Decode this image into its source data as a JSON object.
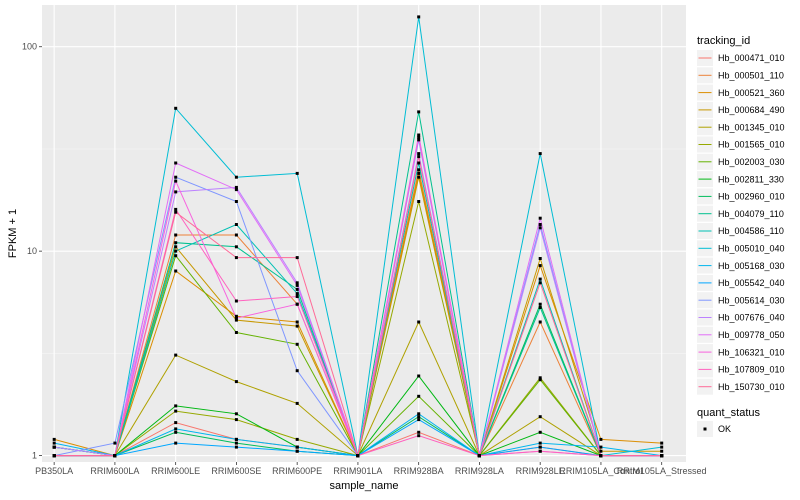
{
  "chart_data": {
    "type": "line",
    "xlabel": "sample_name",
    "ylabel": "FPKM + 1",
    "y_scale": "log10",
    "ylim": [
      0.93,
      160
    ],
    "y_ticks": [
      1,
      10,
      100
    ],
    "y_tick_labels": [
      "1",
      "10",
      "100"
    ],
    "grid": true,
    "legend_position": "right",
    "categories": [
      "PB350LA",
      "RRIM600LA",
      "RRIM600LE",
      "RRIM600SE",
      "RRIM600PE",
      "RRIM901LA",
      "RRIM928BA",
      "RRIM928LA",
      "RRIM928LE",
      "RRIM105LA_Control",
      "RRIM105LA_Stressed"
    ],
    "series": [
      {
        "name": "Hb_000471_010",
        "color": "#F8766D",
        "values": [
          1.0,
          1.0,
          1.45,
          1.2,
          1.1,
          1.0,
          1.3,
          1.0,
          1.1,
          1.0,
          1.0
        ]
      },
      {
        "name": "Hb_000501_110",
        "color": "#EC8239",
        "values": [
          1.0,
          1.0,
          12.0,
          12.0,
          5.5,
          1.0,
          25.0,
          1.0,
          4.5,
          1.0,
          1.0
        ]
      },
      {
        "name": "Hb_000521_360",
        "color": "#DB8E00",
        "values": [
          1.2,
          1.0,
          8.0,
          4.8,
          4.5,
          1.0,
          24.0,
          1.0,
          8.5,
          1.2,
          1.15
        ]
      },
      {
        "name": "Hb_000684_490",
        "color": "#C79800",
        "values": [
          1.1,
          1.0,
          10.5,
          4.6,
          4.3,
          1.0,
          23.0,
          1.0,
          9.2,
          1.05,
          1.05
        ]
      },
      {
        "name": "Hb_001345_010",
        "color": "#AFA100",
        "values": [
          1.0,
          1.0,
          3.1,
          2.3,
          1.8,
          1.0,
          4.5,
          1.0,
          1.55,
          1.0,
          1.0
        ]
      },
      {
        "name": "Hb_001565_010",
        "color": "#96A900",
        "values": [
          1.0,
          1.0,
          1.65,
          1.5,
          1.2,
          1.0,
          17.5,
          1.0,
          2.4,
          1.0,
          1.0
        ]
      },
      {
        "name": "Hb_002003_030",
        "color": "#64B200",
        "values": [
          1.1,
          1.0,
          9.5,
          4.0,
          3.5,
          1.0,
          1.95,
          1.0,
          2.35,
          1.0,
          1.0
        ]
      },
      {
        "name": "Hb_002811_330",
        "color": "#00B813",
        "values": [
          1.0,
          1.0,
          1.75,
          1.6,
          1.1,
          1.0,
          2.45,
          1.0,
          1.3,
          1.0,
          1.0
        ]
      },
      {
        "name": "Hb_002960_010",
        "color": "#00BD5C",
        "values": [
          1.0,
          1.0,
          1.3,
          1.15,
          1.05,
          1.0,
          1.55,
          1.0,
          5.5,
          1.0,
          1.0
        ]
      },
      {
        "name": "Hb_004079_110",
        "color": "#00C08E",
        "values": [
          1.0,
          1.0,
          11.0,
          10.5,
          6.5,
          1.0,
          48.0,
          1.0,
          5.3,
          1.0,
          1.0
        ]
      },
      {
        "name": "Hb_004586_110",
        "color": "#00C0B4",
        "values": [
          1.1,
          1.0,
          10.0,
          13.5,
          6.2,
          1.0,
          27.0,
          1.0,
          7.3,
          1.0,
          1.0
        ]
      },
      {
        "name": "Hb_005010_040",
        "color": "#00BDD4",
        "values": [
          1.1,
          1.0,
          50.0,
          23.0,
          24.0,
          1.0,
          140.0,
          1.0,
          30.0,
          1.0,
          1.1
        ]
      },
      {
        "name": "Hb_005168_030",
        "color": "#00B5EE",
        "values": [
          1.15,
          1.0,
          1.35,
          1.2,
          1.1,
          1.0,
          1.6,
          1.0,
          1.15,
          1.1,
          1.0
        ]
      },
      {
        "name": "Hb_005542_040",
        "color": "#00A7FF",
        "values": [
          1.0,
          1.0,
          1.15,
          1.1,
          1.05,
          1.0,
          1.5,
          1.0,
          1.1,
          1.0,
          1.0
        ]
      },
      {
        "name": "Hb_005614_030",
        "color": "#7F96FF",
        "values": [
          1.0,
          1.15,
          23.0,
          17.5,
          2.6,
          1.0,
          35.0,
          1.0,
          13.5,
          1.0,
          1.0
        ]
      },
      {
        "name": "Hb_007676_040",
        "color": "#BC81FF",
        "values": [
          1.1,
          1.0,
          19.5,
          20.5,
          7.0,
          1.0,
          30.0,
          1.0,
          13.0,
          1.0,
          1.0
        ]
      },
      {
        "name": "Hb_009778_050",
        "color": "#E26EF7",
        "values": [
          1.0,
          1.0,
          27.0,
          20.0,
          6.8,
          1.0,
          37.0,
          1.0,
          14.5,
          1.0,
          1.0
        ]
      },
      {
        "name": "Hb_106321_010",
        "color": "#F863DF",
        "values": [
          1.0,
          1.0,
          22.0,
          4.7,
          5.5,
          1.0,
          36.0,
          1.0,
          1.05,
          1.0,
          1.0
        ]
      },
      {
        "name": "Hb_107809_010",
        "color": "#FF62BF",
        "values": [
          1.0,
          1.0,
          16.0,
          5.7,
          6.0,
          1.0,
          1.25,
          1.0,
          1.05,
          1.0,
          1.0
        ]
      },
      {
        "name": "Hb_150730_010",
        "color": "#FF6A98",
        "values": [
          1.0,
          1.0,
          15.5,
          9.3,
          9.3,
          1.0,
          29.0,
          1.0,
          7.0,
          1.0,
          1.0
        ]
      }
    ],
    "legend": {
      "color_title": "tracking_id",
      "shape_title": "quant_status",
      "shape_entries": [
        "OK"
      ]
    }
  }
}
